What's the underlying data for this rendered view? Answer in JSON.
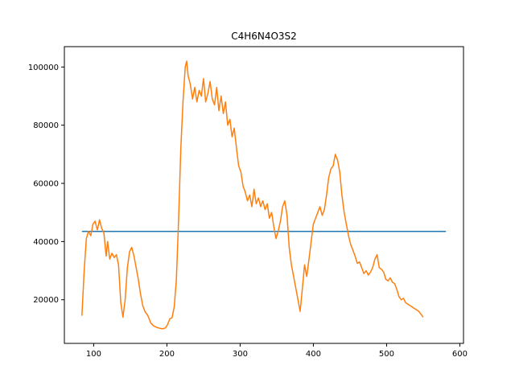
{
  "chart_data": {
    "type": "line",
    "title": "C4H6N4O3S2",
    "xlabel": "",
    "ylabel": "",
    "xlim": [
      60,
      605
    ],
    "ylim": [
      5000,
      107000
    ],
    "x_ticks": [
      100,
      200,
      300,
      400,
      500,
      600
    ],
    "y_ticks": [
      20000,
      40000,
      60000,
      80000,
      100000
    ],
    "x_tick_labels": [
      "100",
      "200",
      "300",
      "400",
      "500",
      "600"
    ],
    "y_tick_labels": [
      "20000",
      "40000",
      "60000",
      "80000",
      "100000"
    ],
    "grid": false,
    "legend": "none",
    "colors": {
      "constant": "#1f77b4",
      "spectrum": "#ff7f0e"
    },
    "series": [
      {
        "points": [
          [
            84,
            43500
          ],
          [
            581,
            43500
          ]
        ]
      },
      {
        "points": [
          [
            84,
            14500
          ],
          [
            87,
            30000
          ],
          [
            90,
            41000
          ],
          [
            93,
            43500
          ],
          [
            96,
            42000
          ],
          [
            99,
            46000
          ],
          [
            102,
            47000
          ],
          [
            105,
            44000
          ],
          [
            108,
            47500
          ],
          [
            111,
            44500
          ],
          [
            114,
            43000
          ],
          [
            117,
            35000
          ],
          [
            119,
            40000
          ],
          [
            122,
            34000
          ],
          [
            125,
            36000
          ],
          [
            128,
            34500
          ],
          [
            131,
            35500
          ],
          [
            134,
            32000
          ],
          [
            137,
            19000
          ],
          [
            140,
            14000
          ],
          [
            143,
            20000
          ],
          [
            146,
            31000
          ],
          [
            149,
            36500
          ],
          [
            152,
            38000
          ],
          [
            155,
            35000
          ],
          [
            158,
            31000
          ],
          [
            161,
            27000
          ],
          [
            164,
            22000
          ],
          [
            167,
            18000
          ],
          [
            170,
            16000
          ],
          [
            174,
            14500
          ],
          [
            178,
            12000
          ],
          [
            182,
            11000
          ],
          [
            186,
            10500
          ],
          [
            190,
            10200
          ],
          [
            194,
            10000
          ],
          [
            198,
            10300
          ],
          [
            201,
            11500
          ],
          [
            204,
            13500
          ],
          [
            207,
            13800
          ],
          [
            210,
            17500
          ],
          [
            213,
            27000
          ],
          [
            216,
            48000
          ],
          [
            219,
            72000
          ],
          [
            222,
            88000
          ],
          [
            225,
            100000
          ],
          [
            227,
            102000
          ],
          [
            229,
            97000
          ],
          [
            232,
            94000
          ],
          [
            235,
            89000
          ],
          [
            238,
            93000
          ],
          [
            241,
            88000
          ],
          [
            244,
            92000
          ],
          [
            247,
            90000
          ],
          [
            250,
            96000
          ],
          [
            253,
            88000
          ],
          [
            256,
            91000
          ],
          [
            259,
            95000
          ],
          [
            262,
            89000
          ],
          [
            265,
            87000
          ],
          [
            268,
            93000
          ],
          [
            271,
            85000
          ],
          [
            274,
            90000
          ],
          [
            277,
            84000
          ],
          [
            280,
            88000
          ],
          [
            283,
            80000
          ],
          [
            286,
            82000
          ],
          [
            289,
            76000
          ],
          [
            292,
            79000
          ],
          [
            295,
            72000
          ],
          [
            298,
            66000
          ],
          [
            301,
            64000
          ],
          [
            304,
            59000
          ],
          [
            307,
            57000
          ],
          [
            310,
            54000
          ],
          [
            313,
            56000
          ],
          [
            316,
            52000
          ],
          [
            319,
            58000
          ],
          [
            322,
            53000
          ],
          [
            325,
            55000
          ],
          [
            328,
            52000
          ],
          [
            331,
            54000
          ],
          [
            334,
            51000
          ],
          [
            337,
            53000
          ],
          [
            340,
            48000
          ],
          [
            343,
            50000
          ],
          [
            346,
            45000
          ],
          [
            349,
            41000
          ],
          [
            352,
            43500
          ],
          [
            355,
            47000
          ],
          [
            358,
            52000
          ],
          [
            361,
            54000
          ],
          [
            364,
            49000
          ],
          [
            367,
            38000
          ],
          [
            370,
            32000
          ],
          [
            373,
            28000
          ],
          [
            376,
            24000
          ],
          [
            379,
            20000
          ],
          [
            382,
            16000
          ],
          [
            385,
            24000
          ],
          [
            388,
            32000
          ],
          [
            391,
            28000
          ],
          [
            394,
            34000
          ],
          [
            397,
            40000
          ],
          [
            400,
            46000
          ],
          [
            403,
            48000
          ],
          [
            406,
            50000
          ],
          [
            409,
            52000
          ],
          [
            412,
            49000
          ],
          [
            415,
            51000
          ],
          [
            418,
            56000
          ],
          [
            421,
            62000
          ],
          [
            424,
            65000
          ],
          [
            427,
            66000
          ],
          [
            430,
            70000
          ],
          [
            433,
            68000
          ],
          [
            436,
            64000
          ],
          [
            439,
            56000
          ],
          [
            442,
            50000
          ],
          [
            445,
            46000
          ],
          [
            448,
            42000
          ],
          [
            451,
            39000
          ],
          [
            454,
            37000
          ],
          [
            457,
            35000
          ],
          [
            460,
            32500
          ],
          [
            463,
            33000
          ],
          [
            466,
            31000
          ],
          [
            469,
            29000
          ],
          [
            472,
            30000
          ],
          [
            475,
            28500
          ],
          [
            478,
            29500
          ],
          [
            481,
            31000
          ],
          [
            484,
            34000
          ],
          [
            487,
            35500
          ],
          [
            490,
            31000
          ],
          [
            493,
            30500
          ],
          [
            496,
            29500
          ],
          [
            499,
            27000
          ],
          [
            502,
            26500
          ],
          [
            505,
            27500
          ],
          [
            508,
            26000
          ],
          [
            511,
            25500
          ],
          [
            514,
            23500
          ],
          [
            517,
            21000
          ],
          [
            520,
            20000
          ],
          [
            523,
            20500
          ],
          [
            526,
            19000
          ],
          [
            529,
            18500
          ],
          [
            532,
            18000
          ],
          [
            535,
            17500
          ],
          [
            538,
            17000
          ],
          [
            541,
            16500
          ],
          [
            544,
            16000
          ],
          [
            547,
            15000
          ],
          [
            550,
            14000
          ]
        ]
      }
    ]
  }
}
